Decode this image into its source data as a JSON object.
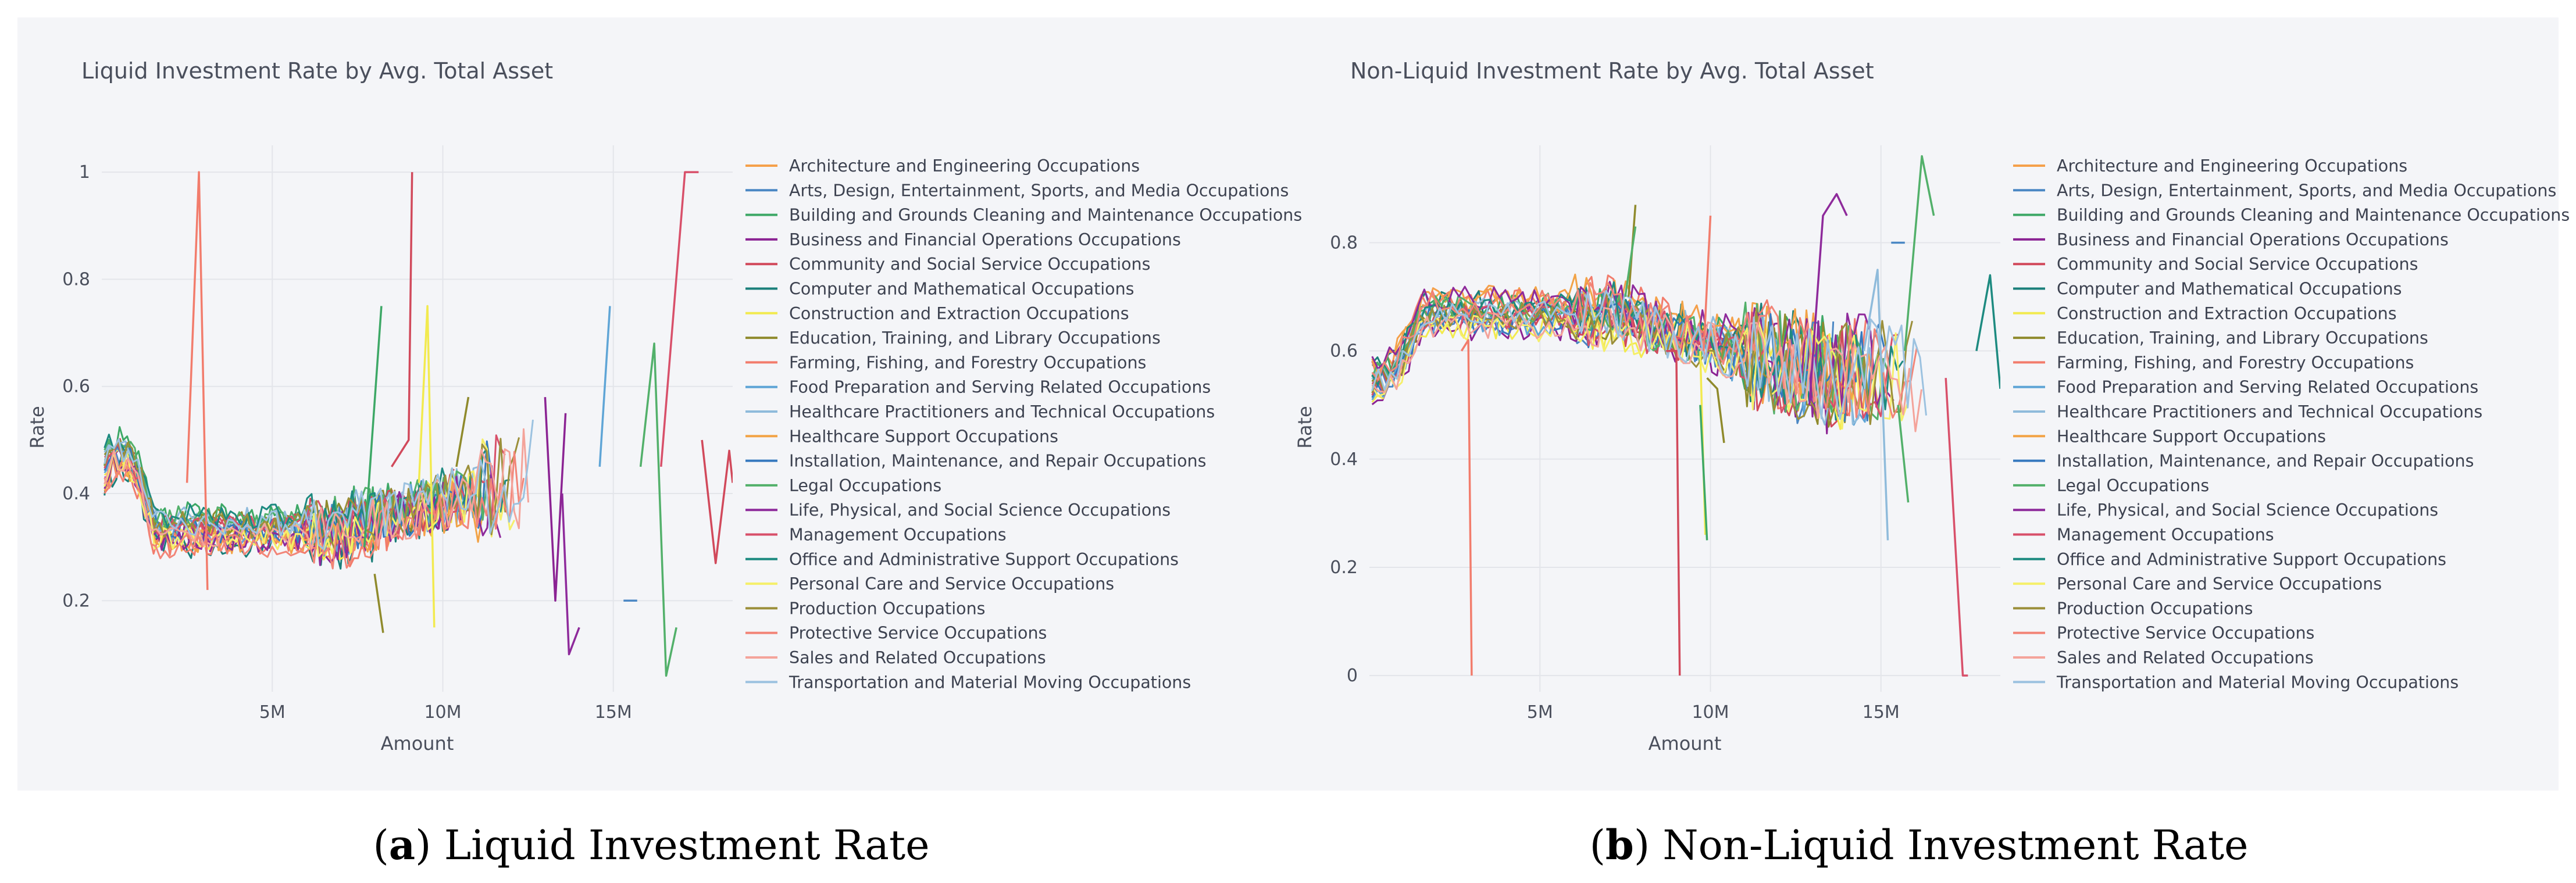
{
  "chart_data": [
    {
      "type": "line",
      "title": "Liquid Investment Rate by Avg. Total Asset",
      "xlabel": "Amount",
      "ylabel": "Rate",
      "xlim": [
        0,
        18500000
      ],
      "ylim": [
        0.03,
        1.05
      ],
      "xticks": [
        5000000,
        10000000,
        15000000
      ],
      "xtick_labels": [
        "5M",
        "10M",
        "15M"
      ],
      "yticks": [
        0.2,
        0.4,
        0.6,
        0.8,
        1
      ],
      "ytick_labels": [
        "0.2",
        "0.4",
        "0.6",
        "0.8",
        "1"
      ],
      "legend": "right",
      "grid": true,
      "base": {
        "first": 0.44,
        "dip": 0.33,
        "late": 0.44
      },
      "spikes": [
        {
          "series": 8,
          "x": [
            2500000,
            2850000,
            3100000
          ],
          "y": [
            0.42,
            1.0,
            0.22
          ]
        },
        {
          "series": 4,
          "x": [
            8500000,
            9000000,
            9100000
          ],
          "y": [
            0.45,
            0.5,
            1.0
          ]
        },
        {
          "series": 6,
          "x": [
            9300000,
            9550000,
            9750000
          ],
          "y": [
            0.42,
            0.75,
            0.15
          ]
        },
        {
          "series": 7,
          "x": [
            8000000,
            8250000
          ],
          "y": [
            0.25,
            0.14
          ]
        },
        {
          "series": 2,
          "x": [
            7700000,
            8200000
          ],
          "y": [
            0.3,
            0.75
          ]
        },
        {
          "series": 7,
          "x": [
            10400000,
            10750000
          ],
          "y": [
            0.45,
            0.58
          ]
        },
        {
          "series": 9,
          "x": [
            14600000,
            14900000
          ],
          "y": [
            0.45,
            0.75
          ]
        },
        {
          "series": 15,
          "x": [
            16400000,
            17100000,
            17500000
          ],
          "y": [
            0.45,
            1.0,
            1.0
          ]
        },
        {
          "series": 13,
          "x": [
            15800000,
            16200000,
            16550000,
            16850000
          ],
          "y": [
            0.45,
            0.68,
            0.06,
            0.15
          ]
        },
        {
          "series": 14,
          "x": [
            13500000,
            13700000,
            14000000
          ],
          "y": [
            0.4,
            0.1,
            0.15
          ]
        },
        {
          "series": 1,
          "x": [
            15300000,
            15700000
          ],
          "y": [
            0.2,
            0.2
          ]
        },
        {
          "series": 4,
          "x": [
            17600000,
            18000000,
            18400000,
            18500000
          ],
          "y": [
            0.5,
            0.27,
            0.48,
            0.42
          ]
        },
        {
          "series": 3,
          "x": [
            13000000,
            13300000,
            13600000
          ],
          "y": [
            0.58,
            0.2,
            0.55
          ]
        }
      ]
    },
    {
      "type": "line",
      "title": "Non-Liquid Investment Rate by Avg. Total Asset",
      "xlabel": "Amount",
      "ylabel": "Rate",
      "xlim": [
        0,
        18500000
      ],
      "ylim": [
        -0.03,
        0.98
      ],
      "xticks": [
        5000000,
        10000000,
        15000000
      ],
      "xtick_labels": [
        "5M",
        "10M",
        "15M"
      ],
      "yticks": [
        0,
        0.2,
        0.4,
        0.6,
        0.8
      ],
      "ytick_labels": [
        "0",
        "0.2",
        "0.4",
        "0.6",
        "0.8"
      ],
      "legend": "right",
      "grid": true,
      "base": {
        "first": 0.55,
        "dip": 0.67,
        "late": 0.56
      },
      "spikes": [
        {
          "series": 8,
          "x": [
            2700000,
            2900000,
            3000000
          ],
          "y": [
            0.6,
            0.62,
            0.0
          ]
        },
        {
          "series": 4,
          "x": [
            8700000,
            9000000,
            9100000
          ],
          "y": [
            0.6,
            0.6,
            0.0
          ]
        },
        {
          "series": 7,
          "x": [
            7600000,
            7800000
          ],
          "y": [
            0.7,
            0.87
          ]
        },
        {
          "series": 13,
          "x": [
            7500000,
            7800000
          ],
          "y": [
            0.7,
            0.83
          ]
        },
        {
          "series": 6,
          "x": [
            9700000,
            9850000
          ],
          "y": [
            0.6,
            0.26
          ]
        },
        {
          "series": 2,
          "x": [
            9700000,
            9900000
          ],
          "y": [
            0.5,
            0.25
          ]
        },
        {
          "series": 7,
          "x": [
            9900000,
            10200000,
            10400000
          ],
          "y": [
            0.55,
            0.53,
            0.43
          ]
        },
        {
          "series": 8,
          "x": [
            9800000,
            10000000
          ],
          "y": [
            0.6,
            0.85
          ]
        },
        {
          "series": 10,
          "x": [
            14500000,
            14900000,
            15200000
          ],
          "y": [
            0.6,
            0.75,
            0.25
          ]
        },
        {
          "series": 13,
          "x": [
            15700000,
            16200000,
            16550000
          ],
          "y": [
            0.6,
            0.96,
            0.85
          ]
        },
        {
          "series": 13,
          "x": [
            15500000,
            15800000
          ],
          "y": [
            0.5,
            0.32
          ]
        },
        {
          "series": 15,
          "x": [
            16900000,
            17400000,
            17550000
          ],
          "y": [
            0.55,
            0.0,
            0.0
          ]
        },
        {
          "series": 14,
          "x": [
            12900000,
            13300000,
            13700000,
            14000000
          ],
          "y": [
            0.5,
            0.85,
            0.89,
            0.85
          ]
        },
        {
          "series": 16,
          "x": [
            17800000,
            18200000,
            18500000
          ],
          "y": [
            0.6,
            0.74,
            0.53
          ]
        },
        {
          "series": 1,
          "x": [
            15300000,
            15700000
          ],
          "y": [
            0.8,
            0.8
          ]
        }
      ]
    }
  ],
  "legend_items": [
    {
      "name": "Architecture and Engineering Occupations",
      "color": "#f5a04a"
    },
    {
      "name": "Arts, Design, Entertainment, Sports, and Media Occupations",
      "color": "#4a87c4"
    },
    {
      "name": "Building and Grounds Cleaning and Maintenance Occupations",
      "color": "#3da866"
    },
    {
      "name": "Business and Financial Operations Occupations",
      "color": "#8b2393"
    },
    {
      "name": "Community and Social Service Occupations",
      "color": "#d1495b"
    },
    {
      "name": "Computer and Mathematical Occupations",
      "color": "#1a7f7a"
    },
    {
      "name": "Construction and Extraction Occupations",
      "color": "#f2ea4f"
    },
    {
      "name": "Education, Training, and Library Occupations",
      "color": "#8f8a2c"
    },
    {
      "name": "Farming, Fishing, and Forestry Occupations",
      "color": "#f27c6c"
    },
    {
      "name": "Food Preparation and Serving Related Occupations",
      "color": "#5fa5d6"
    },
    {
      "name": "Healthcare Practitioners and Technical Occupations",
      "color": "#8fbbdb"
    },
    {
      "name": "Healthcare Support Occupations",
      "color": "#f2a346"
    },
    {
      "name": "Installation, Maintenance, and Repair Occupations",
      "color": "#3679bf"
    },
    {
      "name": "Legal Occupations",
      "color": "#52b06a"
    },
    {
      "name": "Life, Physical, and Social Science Occupations",
      "color": "#8e2a9b"
    },
    {
      "name": "Management Occupations",
      "color": "#d8506a"
    },
    {
      "name": "Office and Administrative Support Occupations",
      "color": "#1d8a80"
    },
    {
      "name": "Personal Care and Service Occupations",
      "color": "#f5ef6a"
    },
    {
      "name": "Production Occupations",
      "color": "#9b8f3a"
    },
    {
      "name": "Protective Service Occupations",
      "color": "#f28578"
    },
    {
      "name": "Sales and Related Occupations",
      "color": "#f4a39a"
    },
    {
      "name": "Transportation and Material Moving Occupations",
      "color": "#9cc2e0"
    }
  ],
  "captions": [
    {
      "letter": "a",
      "text": "Liquid Investment Rate"
    },
    {
      "letter": "b",
      "text": "Non-Liquid Investment Rate"
    }
  ]
}
